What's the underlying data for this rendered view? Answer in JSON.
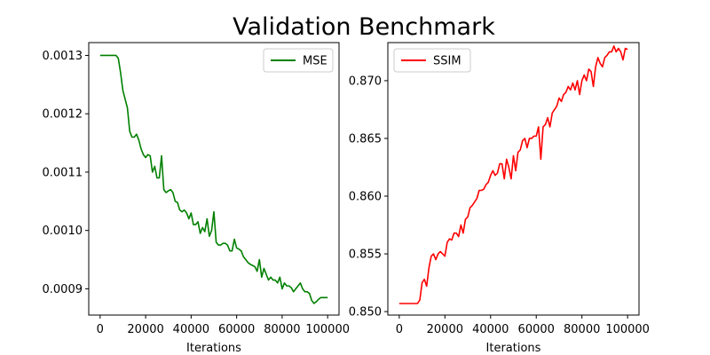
{
  "suptitle": "Validation Benchmark",
  "chart_data": [
    {
      "type": "line",
      "xlabel": "Iterations",
      "ylabel": "",
      "xlim": [
        -5000,
        105000
      ],
      "ylim": [
        0.000855,
        0.001322
      ],
      "xticks": [
        0,
        20000,
        40000,
        60000,
        80000,
        100000
      ],
      "xtick_labels": [
        "0",
        "20000",
        "40000",
        "60000",
        "80000",
        "100000"
      ],
      "yticks": [
        0.0009,
        0.001,
        0.0011,
        0.0012,
        0.0013
      ],
      "ytick_labels": [
        "0.0009",
        "0.0010",
        "0.0011",
        "0.0012",
        "0.0013"
      ],
      "grid": false,
      "legend_position": "upper right",
      "series": [
        {
          "name": "MSE",
          "color": "#008000",
          "x": [
            0,
            1000,
            2000,
            3000,
            4000,
            5000,
            6000,
            7000,
            8000,
            9000,
            10000,
            11000,
            12000,
            13000,
            14000,
            15000,
            16000,
            17000,
            18000,
            19000,
            20000,
            21000,
            22000,
            23000,
            24000,
            25000,
            26000,
            27000,
            28000,
            29000,
            30000,
            31000,
            32000,
            33000,
            34000,
            35000,
            36000,
            37000,
            38000,
            39000,
            40000,
            41000,
            42000,
            43000,
            44000,
            45000,
            46000,
            47000,
            48000,
            49000,
            50000,
            51000,
            52000,
            53000,
            54000,
            55000,
            56000,
            57000,
            58000,
            59000,
            60000,
            61000,
            62000,
            63000,
            64000,
            65000,
            66000,
            67000,
            68000,
            69000,
            70000,
            71000,
            72000,
            73000,
            74000,
            75000,
            76000,
            77000,
            78000,
            79000,
            80000,
            81000,
            82000,
            83000,
            84000,
            85000,
            86000,
            87000,
            88000,
            89000,
            90000,
            91000,
            92000,
            93000,
            94000,
            95000,
            96000,
            97000,
            98000,
            99000,
            100000
          ],
          "y": [
            0.0013,
            0.0013,
            0.0013,
            0.0013,
            0.0013,
            0.0013,
            0.0013,
            0.0013,
            0.001295,
            0.00127,
            0.00124,
            0.001225,
            0.00121,
            0.00117,
            0.00116,
            0.00116,
            0.001165,
            0.001155,
            0.00114,
            0.00113,
            0.001125,
            0.00113,
            0.001128,
            0.0011,
            0.00111,
            0.00109,
            0.00109,
            0.001128,
            0.00107,
            0.001065,
            0.001068,
            0.00107,
            0.001065,
            0.00105,
            0.001048,
            0.001035,
            0.001032,
            0.001035,
            0.00103,
            0.00102,
            0.00103,
            0.00101,
            0.00101,
            0.001015,
            0.000995,
            0.001005,
            0.000998,
            0.00102,
            0.00099,
            0.001,
            0.001032,
            0.00098,
            0.000975,
            0.000975,
            0.000978,
            0.000978,
            0.000975,
            0.000965,
            0.000965,
            0.000985,
            0.00097,
            0.000968,
            0.000965,
            0.000955,
            0.00095,
            0.000945,
            0.000942,
            0.00094,
            0.000938,
            0.00093,
            0.00095,
            0.00092,
            0.000935,
            0.000925,
            0.000915,
            0.00092,
            0.000915,
            0.000915,
            0.00091,
            0.00092,
            0.0009,
            0.00091,
            0.000905,
            0.000905,
            0.000902,
            0.000895,
            0.0009,
            0.000905,
            0.00091,
            0.0009,
            0.000895,
            0.000895,
            0.000892,
            0.00088,
            0.000875,
            0.000878,
            0.000882,
            0.000885,
            0.000885,
            0.000885,
            0.000885
          ]
        }
      ]
    },
    {
      "type": "line",
      "xlabel": "Iterations",
      "ylabel": "",
      "xlim": [
        -5000,
        105000
      ],
      "ylim": [
        0.8497,
        0.8733
      ],
      "xticks": [
        0,
        20000,
        40000,
        60000,
        80000,
        100000
      ],
      "xtick_labels": [
        "0",
        "20000",
        "40000",
        "60000",
        "80000",
        "100000"
      ],
      "yticks": [
        0.85,
        0.855,
        0.86,
        0.865,
        0.87
      ],
      "ytick_labels": [
        "0.850",
        "0.855",
        "0.860",
        "0.865",
        "0.870"
      ],
      "grid": false,
      "legend_position": "upper left",
      "series": [
        {
          "name": "SSIM",
          "color": "#ff0000",
          "x": [
            0,
            1000,
            2000,
            3000,
            4000,
            5000,
            6000,
            7000,
            8000,
            9000,
            10000,
            11000,
            12000,
            13000,
            14000,
            15000,
            16000,
            17000,
            18000,
            19000,
            20000,
            21000,
            22000,
            23000,
            24000,
            25000,
            26000,
            27000,
            28000,
            29000,
            30000,
            31000,
            32000,
            33000,
            34000,
            35000,
            36000,
            37000,
            38000,
            39000,
            40000,
            41000,
            42000,
            43000,
            44000,
            45000,
            46000,
            47000,
            48000,
            49000,
            50000,
            51000,
            52000,
            53000,
            54000,
            55000,
            56000,
            57000,
            58000,
            59000,
            60000,
            61000,
            62000,
            63000,
            64000,
            65000,
            66000,
            67000,
            68000,
            69000,
            70000,
            71000,
            72000,
            73000,
            74000,
            75000,
            76000,
            77000,
            78000,
            79000,
            80000,
            81000,
            82000,
            83000,
            84000,
            85000,
            86000,
            87000,
            88000,
            89000,
            90000,
            91000,
            92000,
            93000,
            94000,
            95000,
            96000,
            97000,
            98000,
            99000,
            100000
          ],
          "y": [
            0.8507,
            0.8507,
            0.8507,
            0.8507,
            0.8507,
            0.8507,
            0.8507,
            0.8507,
            0.8507,
            0.851,
            0.8525,
            0.8528,
            0.8522,
            0.8538,
            0.8548,
            0.855,
            0.8545,
            0.855,
            0.8552,
            0.855,
            0.8548,
            0.856,
            0.8563,
            0.8562,
            0.8568,
            0.8568,
            0.8565,
            0.8575,
            0.8568,
            0.858,
            0.8582,
            0.859,
            0.8592,
            0.8595,
            0.8598,
            0.8605,
            0.8605,
            0.8606,
            0.861,
            0.8612,
            0.8618,
            0.8622,
            0.8618,
            0.862,
            0.8628,
            0.8628,
            0.8615,
            0.8632,
            0.8625,
            0.8615,
            0.8635,
            0.8622,
            0.8638,
            0.864,
            0.8648,
            0.865,
            0.8642,
            0.865,
            0.865,
            0.8652,
            0.8652,
            0.866,
            0.8632,
            0.866,
            0.8662,
            0.8668,
            0.866,
            0.8672,
            0.8675,
            0.8678,
            0.8685,
            0.8682,
            0.8688,
            0.869,
            0.8695,
            0.8692,
            0.8698,
            0.8692,
            0.87,
            0.8688,
            0.87,
            0.8705,
            0.87,
            0.871,
            0.8708,
            0.8695,
            0.8712,
            0.872,
            0.8715,
            0.8712,
            0.872,
            0.8722,
            0.8725,
            0.8725,
            0.873,
            0.8725,
            0.8728,
            0.8725,
            0.8718,
            0.8728,
            0.8727
          ]
        }
      ]
    }
  ]
}
